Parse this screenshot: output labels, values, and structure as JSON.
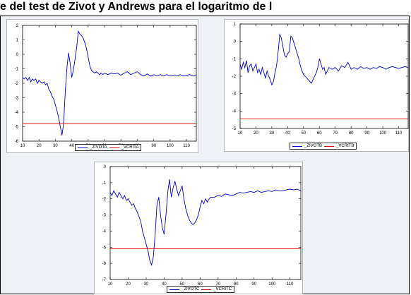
{
  "page": {
    "title": "e del test de Zivot y Andrews para el logaritmo de l"
  },
  "colors": {
    "zivot": "#0000dd",
    "vcrit": "#dd0000"
  },
  "chart_data": [
    {
      "type": "line",
      "xlim": [
        10,
        116
      ],
      "ylim": [
        -6,
        2
      ],
      "xticks": [
        10,
        20,
        30,
        40,
        50,
        60,
        70,
        80,
        90,
        100,
        110
      ],
      "yticks": [
        2,
        1,
        0,
        -1,
        -2,
        -3,
        -4,
        -5,
        -6
      ],
      "grid": false,
      "legend": "bottom-center",
      "series": [
        {
          "name": "_ZIVOTA",
          "x": [
            10,
            11,
            12,
            13,
            14,
            15,
            16,
            17,
            18,
            19,
            20,
            21,
            22,
            23,
            24,
            25,
            26,
            27,
            28,
            29,
            30,
            31,
            32,
            33,
            34,
            35,
            36,
            37,
            38,
            39,
            40,
            41,
            42,
            43,
            44,
            45,
            46,
            47,
            48,
            49,
            50,
            51,
            52,
            53,
            54,
            55,
            56,
            57,
            58,
            59,
            60,
            62,
            64,
            66,
            68,
            70,
            72,
            74,
            76,
            78,
            80,
            82,
            84,
            86,
            88,
            90,
            92,
            94,
            96,
            98,
            100,
            102,
            104,
            106,
            108,
            110,
            112,
            114,
            116
          ],
          "y": [
            -1.6,
            -1.7,
            -1.6,
            -1.8,
            -1.6,
            -1.9,
            -1.7,
            -1.8,
            -1.7,
            -2.0,
            -1.8,
            -1.9,
            -2.0,
            -1.9,
            -2.1,
            -2.0,
            -2.4,
            -2.6,
            -2.9,
            -3.1,
            -3.5,
            -3.9,
            -4.4,
            -5.0,
            -5.6,
            -4.8,
            -2.7,
            -1.0,
            0.1,
            -0.6,
            -1.6,
            -1.1,
            -0.3,
            0.5,
            1.6,
            1.4,
            1.3,
            1.1,
            0.8,
            0.4,
            -0.2,
            -0.8,
            -1.1,
            -1.2,
            -1.3,
            -1.2,
            -1.3,
            -1.4,
            -1.3,
            -1.4,
            -1.3,
            -1.4,
            -1.3,
            -1.35,
            -1.3,
            -1.45,
            -1.3,
            -1.2,
            -1.4,
            -1.3,
            -1.2,
            -1.4,
            -1.5,
            -1.35,
            -1.5,
            -1.4,
            -1.5,
            -1.4,
            -1.5,
            -1.4,
            -1.5,
            -1.45,
            -1.5,
            -1.4,
            -1.5,
            -1.45,
            -1.4,
            -1.5,
            -1.45
          ]
        },
        {
          "name": "_VCRITA",
          "x": [
            10,
            116
          ],
          "y": [
            -4.8,
            -4.8
          ]
        }
      ]
    },
    {
      "type": "line",
      "xlim": [
        10,
        116
      ],
      "ylim": [
        -5,
        1
      ],
      "xticks": [
        10,
        20,
        30,
        40,
        50,
        60,
        70,
        80,
        90,
        100,
        110
      ],
      "yticks": [
        1,
        0,
        -1,
        -2,
        -3,
        -4,
        -5
      ],
      "grid": false,
      "legend": "bottom-center",
      "series": [
        {
          "name": "_ZIVOTB",
          "x": [
            10,
            11,
            12,
            13,
            14,
            15,
            16,
            17,
            18,
            19,
            20,
            21,
            22,
            23,
            24,
            25,
            26,
            27,
            28,
            29,
            30,
            31,
            32,
            33,
            34,
            35,
            36,
            37,
            38,
            39,
            40,
            41,
            42,
            43,
            44,
            45,
            46,
            47,
            48,
            49,
            50,
            51,
            52,
            53,
            54,
            55,
            56,
            57,
            58,
            59,
            60,
            61,
            62,
            63,
            64,
            65,
            66,
            68,
            70,
            72,
            74,
            76,
            78,
            80,
            82,
            84,
            86,
            88,
            90,
            92,
            94,
            96,
            98,
            100,
            102,
            104,
            106,
            108,
            110,
            112,
            114,
            116
          ],
          "y": [
            -1.3,
            -1.6,
            -1.2,
            -1.5,
            -1.1,
            -1.8,
            -1.4,
            -1.3,
            -1.7,
            -1.5,
            -1.3,
            -1.8,
            -1.6,
            -1.9,
            -1.5,
            -1.8,
            -2.1,
            -1.7,
            -2.0,
            -2.2,
            -2.5,
            -2.3,
            -1.8,
            -1.4,
            -0.6,
            0.4,
            0.2,
            -0.3,
            -0.8,
            -0.9,
            -0.7,
            -0.6,
            0.3,
            0.2,
            -0.1,
            -0.4,
            -0.7,
            -1.0,
            -1.4,
            -1.7,
            -1.9,
            -2.0,
            -2.1,
            -2.2,
            -2.3,
            -2.4,
            -2.2,
            -2.0,
            -1.8,
            -1.5,
            -1.0,
            -1.3,
            -1.6,
            -1.5,
            -1.9,
            -1.7,
            -1.5,
            -1.6,
            -1.5,
            -1.7,
            -1.4,
            -1.5,
            -1.2,
            -1.6,
            -1.5,
            -1.6,
            -1.45,
            -1.55,
            -1.5,
            -1.6,
            -1.5,
            -1.55,
            -1.45,
            -1.5,
            -1.6,
            -1.5,
            -1.45,
            -1.5,
            -1.55,
            -1.5,
            -1.45,
            -1.5
          ]
        },
        {
          "name": "_VCRITB",
          "x": [
            10,
            116
          ],
          "y": [
            -4.45,
            -4.45
          ]
        }
      ]
    },
    {
      "type": "line",
      "xlim": [
        10,
        116
      ],
      "ylim": [
        -7,
        0
      ],
      "xticks": [
        10,
        20,
        30,
        40,
        50,
        60,
        70,
        80,
        90,
        100,
        110
      ],
      "yticks": [
        0,
        -1,
        -2,
        -3,
        -4,
        -5,
        -6,
        -7
      ],
      "grid": false,
      "legend": "bottom-center",
      "series": [
        {
          "name": "_ZIVOTC",
          "x": [
            10,
            11,
            12,
            13,
            14,
            15,
            16,
            17,
            18,
            19,
            20,
            21,
            22,
            23,
            24,
            25,
            26,
            27,
            28,
            29,
            30,
            31,
            32,
            33,
            34,
            35,
            36,
            37,
            38,
            39,
            40,
            41,
            42,
            43,
            44,
            45,
            46,
            47,
            48,
            49,
            50,
            51,
            52,
            53,
            54,
            55,
            56,
            57,
            58,
            59,
            60,
            61,
            62,
            63,
            64,
            65,
            66,
            68,
            70,
            72,
            74,
            76,
            78,
            80,
            82,
            84,
            86,
            88,
            90,
            92,
            94,
            96,
            98,
            100,
            102,
            104,
            106,
            108,
            110,
            112,
            114,
            116
          ],
          "y": [
            -1.6,
            -1.8,
            -1.5,
            -1.7,
            -1.9,
            -1.6,
            -1.8,
            -2.0,
            -1.8,
            -2.1,
            -2.0,
            -2.2,
            -2.4,
            -2.3,
            -2.6,
            -2.8,
            -3.1,
            -3.4,
            -4.0,
            -4.4,
            -4.8,
            -5.2,
            -5.8,
            -6.1,
            -5.6,
            -4.2,
            -2.4,
            -1.9,
            -3.0,
            -3.8,
            -4.2,
            -3.0,
            -1.6,
            -0.8,
            -1.9,
            -1.3,
            -0.9,
            -1.4,
            -1.8,
            -1.5,
            -1.2,
            -2.0,
            -2.6,
            -3.0,
            -3.3,
            -3.5,
            -3.6,
            -3.5,
            -3.3,
            -3.0,
            -2.5,
            -2.1,
            -2.3,
            -2.0,
            -2.2,
            -2.0,
            -1.9,
            -1.9,
            -1.8,
            -1.85,
            -1.7,
            -1.75,
            -1.8,
            -1.7,
            -1.6,
            -1.65,
            -1.6,
            -1.55,
            -1.6,
            -1.5,
            -1.6,
            -1.55,
            -1.5,
            -1.55,
            -1.45,
            -1.5,
            -1.5,
            -1.45,
            -1.4,
            -1.45,
            -1.4,
            -1.5
          ]
        },
        {
          "name": "_VCRITC",
          "x": [
            10,
            116
          ],
          "y": [
            -5.1,
            -5.1
          ]
        }
      ]
    }
  ]
}
